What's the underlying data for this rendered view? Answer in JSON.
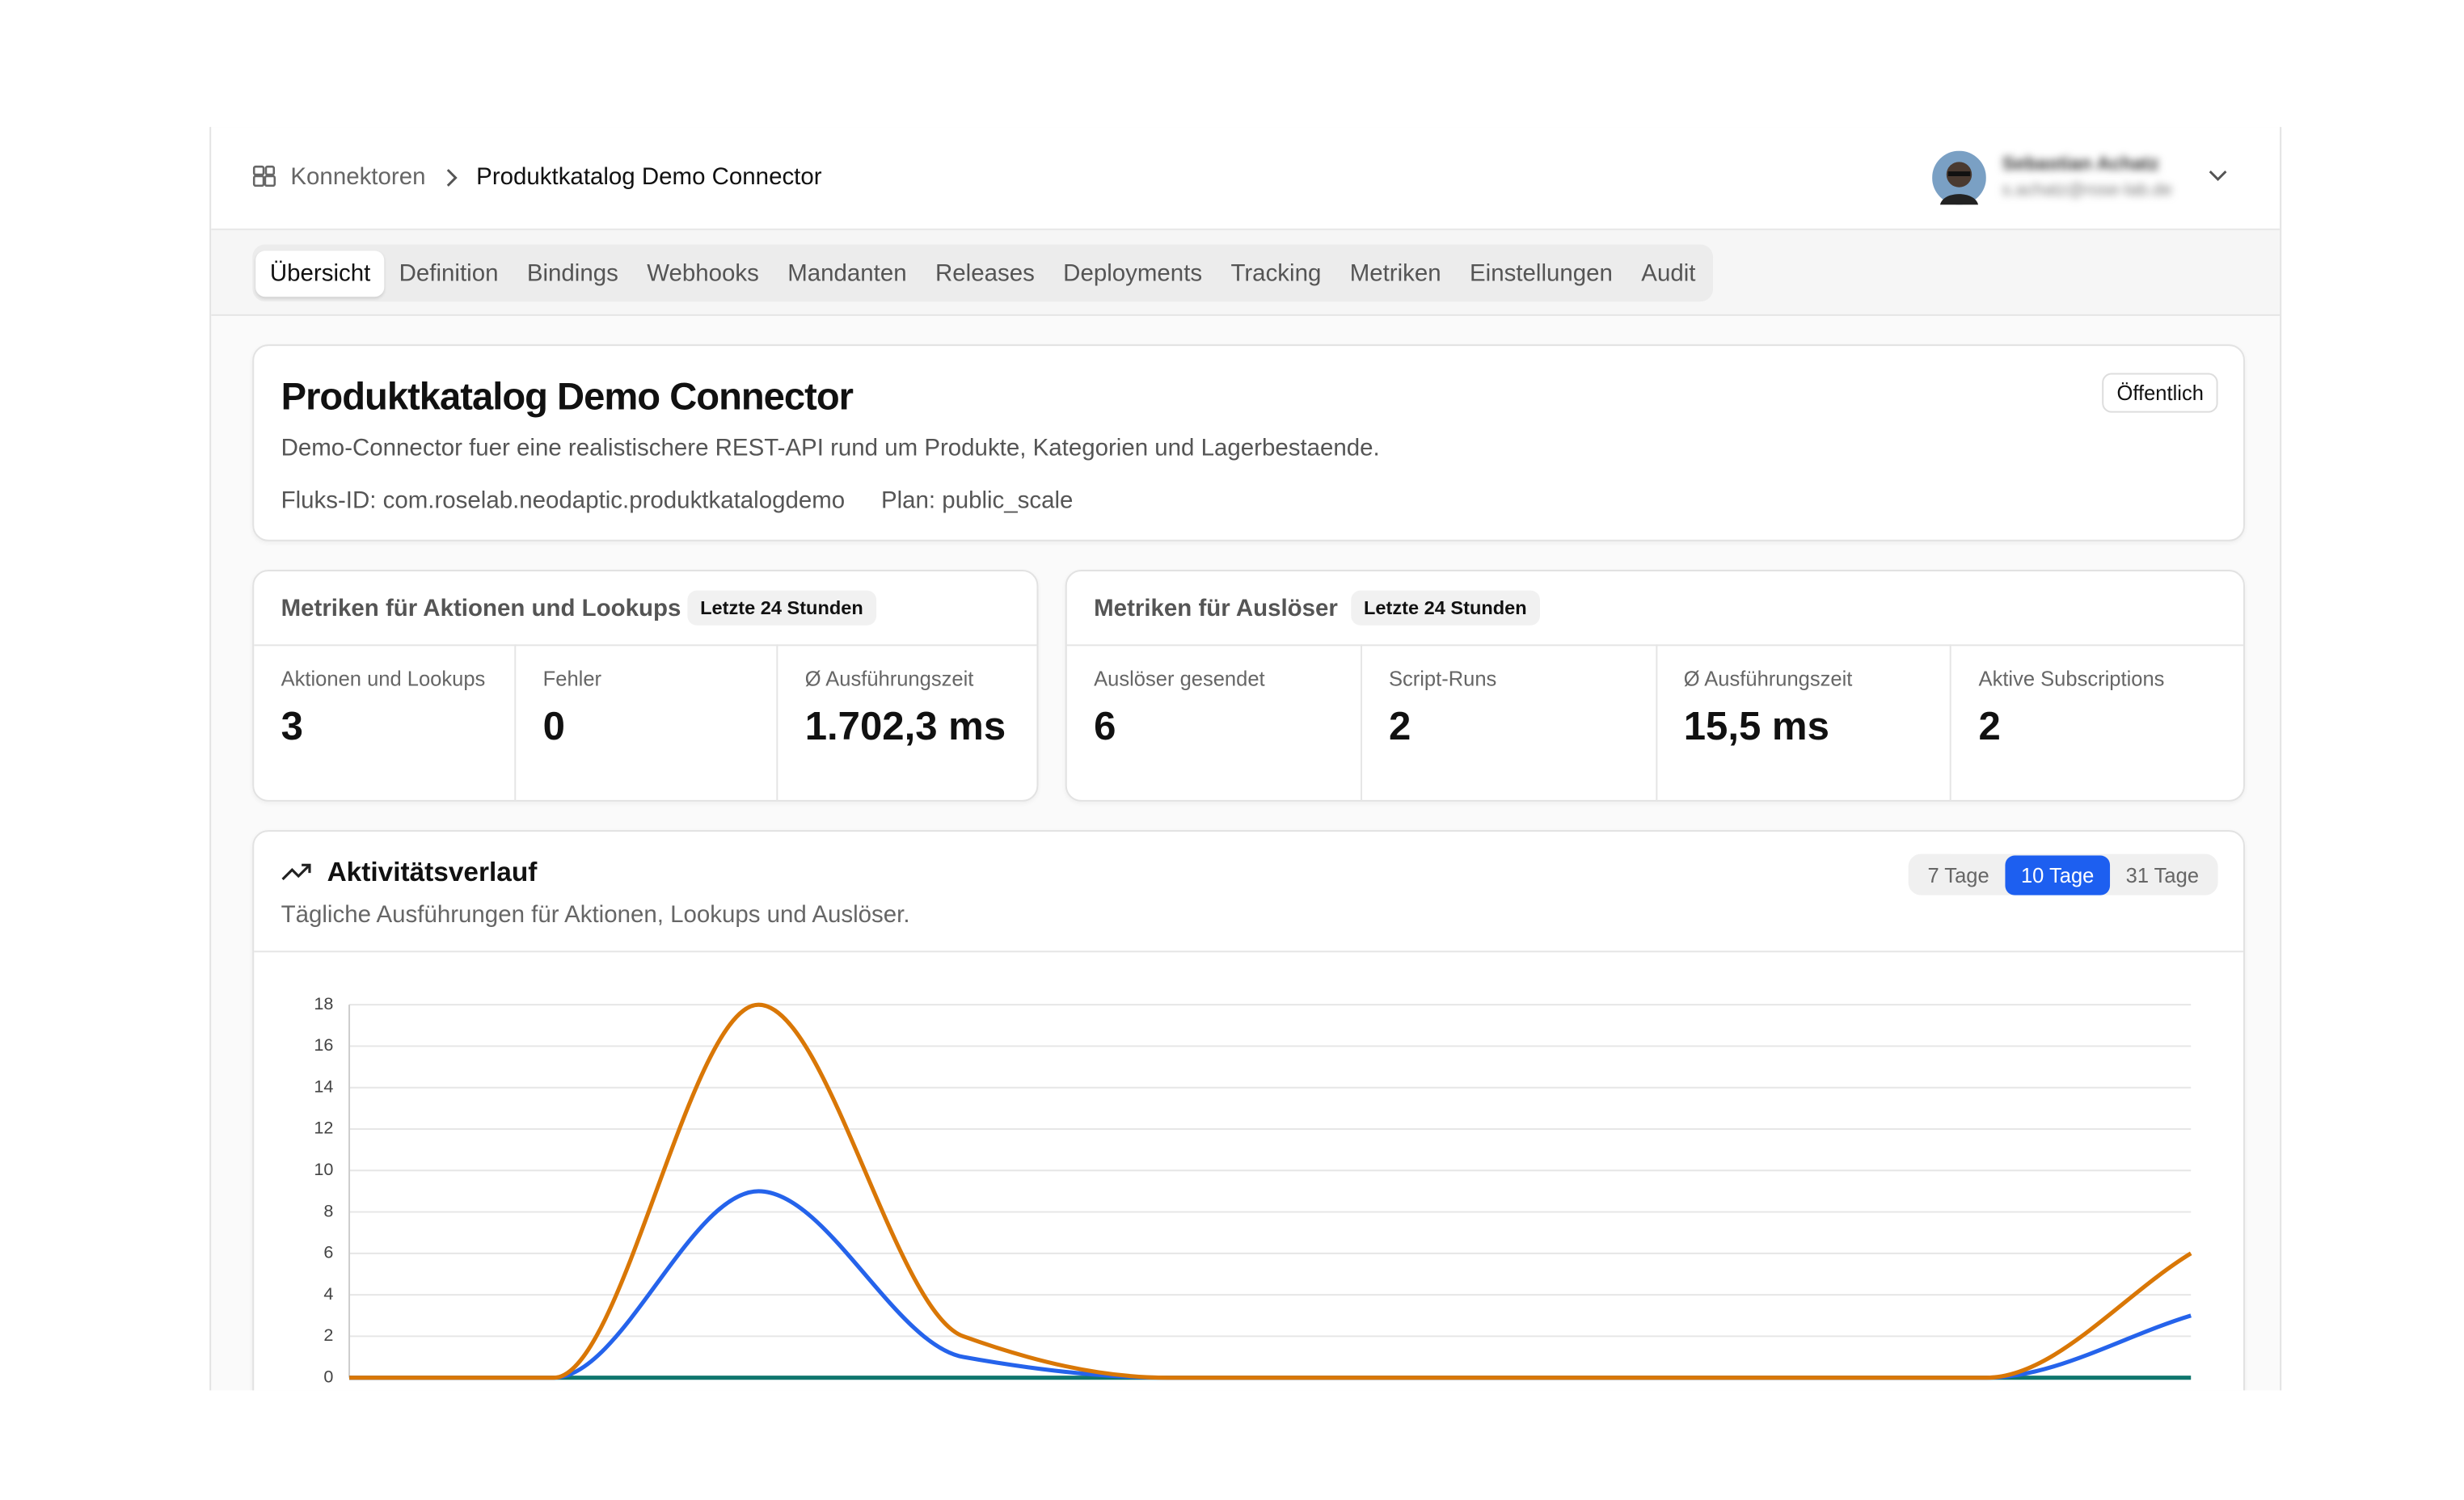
{
  "breadcrumb": {
    "parent": "Konnektoren",
    "current": "Produktkatalog Demo Connector"
  },
  "user": {
    "name": "Sebastian Achatz",
    "email": "s.achatz@rose-lab.de"
  },
  "tabs": [
    "Übersicht",
    "Definition",
    "Bindings",
    "Webhooks",
    "Mandanten",
    "Releases",
    "Deployments",
    "Tracking",
    "Metriken",
    "Einstellungen",
    "Audit"
  ],
  "overview": {
    "title": "Produktkatalog Demo Connector",
    "badge": "Öffentlich",
    "description": "Demo-Connector fuer eine realistischere REST-API rund um Produkte, Kategorien und Lagerbestaende.",
    "fluks_id": "Fluks-ID: com.roselab.neodaptic.produktkatalogdemo",
    "plan": "Plan: public_scale"
  },
  "metrics": [
    {
      "title": "Metriken für Aktionen und Lookups",
      "badge": "Letzte 24 Stunden",
      "cells": [
        {
          "label": "Aktionen und Lookups",
          "value": "3"
        },
        {
          "label": "Fehler",
          "value": "0"
        },
        {
          "label": "Ø Ausführungszeit",
          "value": "1.702,3 ms"
        }
      ]
    },
    {
      "title": "Metriken für Auslöser",
      "badge": "Letzte 24 Stunden",
      "cells": [
        {
          "label": "Auslöser gesendet",
          "value": "6"
        },
        {
          "label": "Script-Runs",
          "value": "2"
        },
        {
          "label": "Ø Ausführungszeit",
          "value": "15,5 ms"
        },
        {
          "label": "Aktive Subscriptions",
          "value": "2"
        }
      ]
    }
  ],
  "activity": {
    "title": "Aktivitätsverlauf",
    "subtitle": "Tägliche Ausführungen für Aktionen, Lookups und Auslöser.",
    "ranges": [
      "7 Tage",
      "10 Tage",
      "31 Tage"
    ],
    "chart_data": {
      "type": "line",
      "categories": [
        null,
        null,
        null,
        null,
        null,
        null,
        null,
        null,
        null,
        null
      ],
      "series": [
        {
          "color": "#d97706",
          "values": [
            0,
            0,
            18,
            2,
            0,
            0,
            0,
            0,
            0,
            6
          ]
        },
        {
          "color": "#2563eb",
          "values": [
            0,
            0,
            9,
            1,
            0,
            0,
            0,
            0,
            0,
            3
          ]
        },
        {
          "color": "#0f766e",
          "values": [
            0,
            0,
            0,
            0,
            0,
            0,
            0,
            0,
            0,
            0
          ]
        }
      ],
      "ylim": [
        0,
        18
      ],
      "yticks": [
        0,
        2,
        4,
        6,
        8,
        10,
        12,
        14,
        16,
        18
      ],
      "grid": true
    }
  }
}
